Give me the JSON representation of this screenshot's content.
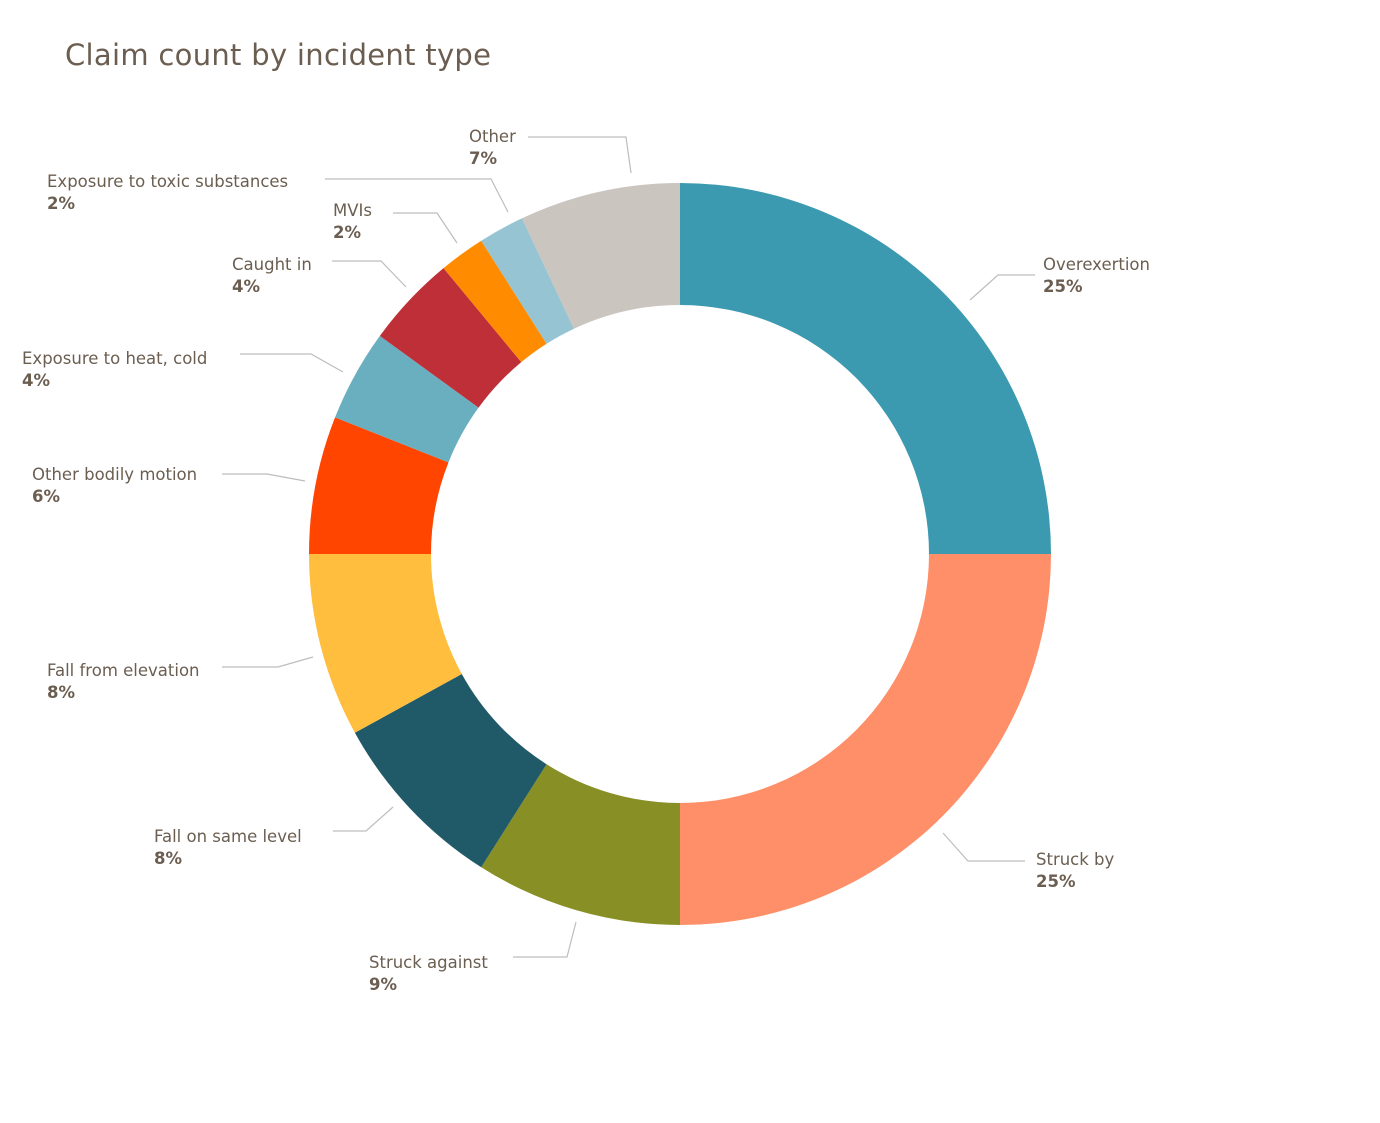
{
  "chart_data": {
    "type": "pie",
    "donut": true,
    "title": "Claim count by incident type",
    "legend": "none",
    "slices": [
      {
        "label": "Overexertion",
        "value": 25,
        "pct_label": "25%",
        "color": "#3C9AB0"
      },
      {
        "label": "Struck by",
        "value": 25,
        "pct_label": "25%",
        "color": "#FF8F68"
      },
      {
        "label": "Struck against",
        "value": 9,
        "pct_label": "9%",
        "color": "#888F24"
      },
      {
        "label": "Fall on same level",
        "value": 8,
        "pct_label": "8%",
        "color": "#205A69"
      },
      {
        "label": "Fall from elevation",
        "value": 8,
        "pct_label": "8%",
        "color": "#FFBE3D"
      },
      {
        "label": "Other bodily motion",
        "value": 6,
        "pct_label": "6%",
        "color": "#FF4500"
      },
      {
        "label": "Exposure to heat, cold",
        "value": 4,
        "pct_label": "4%",
        "color": "#6AAFC0"
      },
      {
        "label": "Caught in",
        "value": 4,
        "pct_label": "4%",
        "color": "#BE2F38"
      },
      {
        "label": "MVIs",
        "value": 2,
        "pct_label": "2%",
        "color": "#FF8C00"
      },
      {
        "label": "Exposure to toxic substances",
        "value": 2,
        "pct_label": "2%",
        "color": "#96C4D2"
      },
      {
        "label": "Other",
        "value": 7,
        "pct_label": "7%",
        "color": "#CBC5C0"
      }
    ]
  }
}
